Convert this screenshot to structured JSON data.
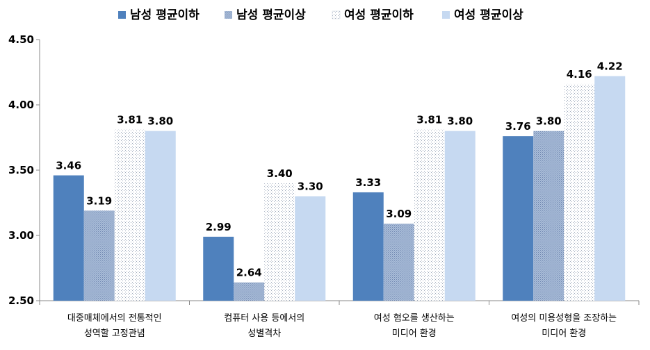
{
  "chart_data": {
    "type": "bar",
    "title": "",
    "xlabel": "",
    "ylabel": "",
    "ylim": [
      2.5,
      4.5
    ],
    "yticks": [
      "2.50",
      "3.00",
      "3.50",
      "4.00",
      "4.50"
    ],
    "ytick_values": [
      2.5,
      3.0,
      3.5,
      4.0,
      4.5
    ],
    "grid": false,
    "legend_position": "top",
    "categories": [
      [
        "대중매체에서의 전통적인",
        "성역할 고정관념"
      ],
      [
        "컴퓨터 사용 등에서의",
        "성별격차"
      ],
      [
        "여성 혐오를 생산하는",
        "미디어 환경"
      ],
      [
        "여성의 미용성형을 조장하는",
        "미디어 환경"
      ]
    ],
    "series": [
      {
        "name": "남성 평균이하",
        "color": "#4F81BD",
        "pattern": "solid",
        "values": [
          3.46,
          2.99,
          3.33,
          3.76
        ],
        "labels": [
          "3.46",
          "2.99",
          "3.33",
          "3.76"
        ]
      },
      {
        "name": "남성 평균이상",
        "color": "#8EA5C8",
        "pattern": "dense-dots",
        "values": [
          3.19,
          2.64,
          3.09,
          3.8
        ],
        "labels": [
          "3.19",
          "2.64",
          "3.09",
          "3.80"
        ]
      },
      {
        "name": "여성 평균이하",
        "color": "#ffffff",
        "pattern": "sparse-dots",
        "values": [
          3.81,
          3.4,
          3.81,
          4.16
        ],
        "labels": [
          "3.81",
          "3.40",
          "3.81",
          "4.16"
        ]
      },
      {
        "name": "여성 평균이상",
        "color": "#C6D9F1",
        "pattern": "solid",
        "values": [
          3.8,
          3.3,
          3.8,
          4.22
        ],
        "labels": [
          "3.80",
          "3.30",
          "3.80",
          "4.22"
        ]
      }
    ]
  }
}
